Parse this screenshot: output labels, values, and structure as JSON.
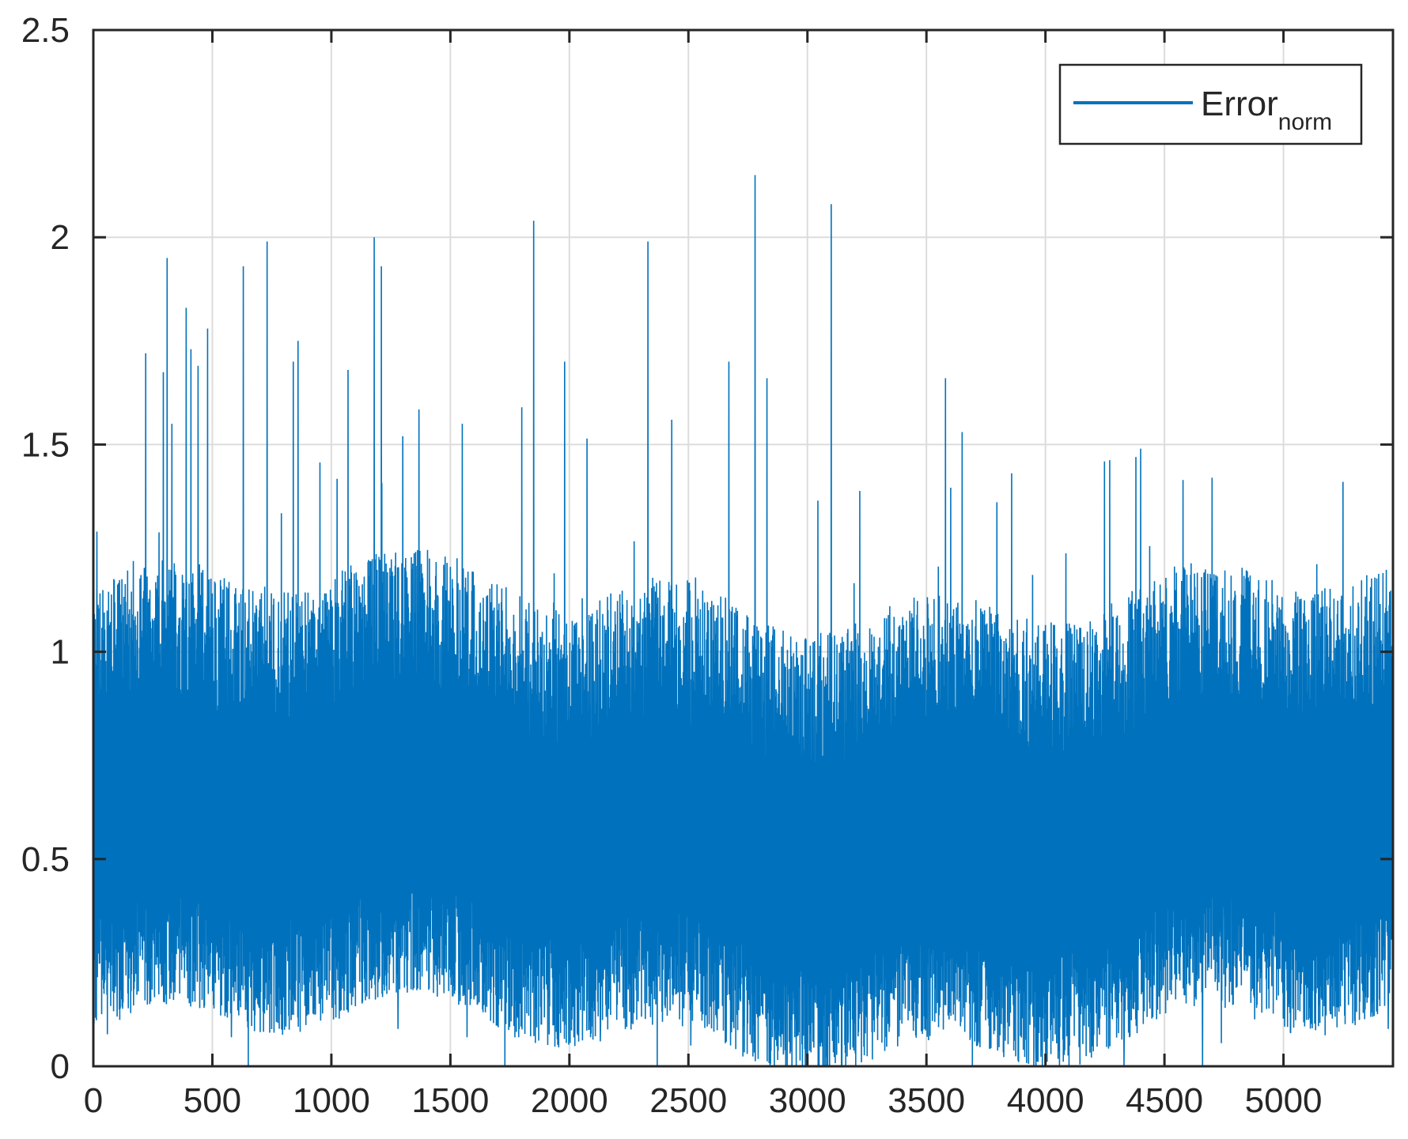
{
  "chart_data": {
    "type": "line",
    "title": "",
    "xlabel": "",
    "ylabel": "",
    "xlim": [
      0,
      5460
    ],
    "ylim": [
      0,
      2.5
    ],
    "x_ticks": [
      0,
      500,
      1000,
      1500,
      2000,
      2500,
      3000,
      3500,
      4000,
      4500,
      5000
    ],
    "x_tick_labels": [
      "0",
      "500",
      "1000",
      "1500",
      "2000",
      "2500",
      "3000",
      "3500",
      "4000",
      "4500",
      "5000"
    ],
    "y_ticks": [
      0,
      0.5,
      1,
      1.5,
      2,
      2.5
    ],
    "y_tick_labels": [
      "0",
      "0.5",
      "1",
      "1.5",
      "2",
      "2.5"
    ],
    "grid": true,
    "legend_position": "top-right",
    "colors": {
      "series": "#0072BD",
      "axis": "#262626",
      "grid": "#dcdcdc",
      "background": "#ffffff"
    },
    "series": [
      {
        "name": "Error",
        "name_subscript": "norm",
        "notes": "dense noisy signal, ~5460 samples; typical band 0.2–1.0, mean ≈0.55",
        "typical_range": [
          0.2,
          1.0
        ],
        "peaks": [
          {
            "x": 0,
            "y": 1.49
          },
          {
            "x": 15,
            "y": 1.29
          },
          {
            "x": 220,
            "y": 1.72
          },
          {
            "x": 310,
            "y": 1.95
          },
          {
            "x": 330,
            "y": 1.55
          },
          {
            "x": 390,
            "y": 1.83
          },
          {
            "x": 410,
            "y": 1.73
          },
          {
            "x": 440,
            "y": 1.69
          },
          {
            "x": 480,
            "y": 1.78
          },
          {
            "x": 630,
            "y": 1.93
          },
          {
            "x": 730,
            "y": 1.99
          },
          {
            "x": 840,
            "y": 1.7
          },
          {
            "x": 860,
            "y": 1.75
          },
          {
            "x": 1070,
            "y": 1.68
          },
          {
            "x": 1180,
            "y": 2.0
          },
          {
            "x": 1210,
            "y": 1.93
          },
          {
            "x": 1300,
            "y": 1.52
          },
          {
            "x": 1550,
            "y": 1.55
          },
          {
            "x": 1800,
            "y": 1.59
          },
          {
            "x": 1850,
            "y": 2.04
          },
          {
            "x": 1980,
            "y": 1.7
          },
          {
            "x": 2330,
            "y": 1.99
          },
          {
            "x": 2430,
            "y": 1.56
          },
          {
            "x": 2670,
            "y": 1.7
          },
          {
            "x": 2780,
            "y": 2.15
          },
          {
            "x": 2830,
            "y": 1.66
          },
          {
            "x": 3100,
            "y": 2.08
          },
          {
            "x": 3580,
            "y": 1.66
          },
          {
            "x": 3650,
            "y": 1.53
          },
          {
            "x": 4380,
            "y": 1.47
          },
          {
            "x": 4400,
            "y": 1.49
          },
          {
            "x": 4700,
            "y": 1.42
          },
          {
            "x": 5250,
            "y": 1.41
          }
        ],
        "troughs": [
          {
            "x": 100,
            "y": 0.12
          },
          {
            "x": 580,
            "y": 0.07
          },
          {
            "x": 1280,
            "y": 0.09
          },
          {
            "x": 1570,
            "y": 0.07
          },
          {
            "x": 2130,
            "y": 0.06
          },
          {
            "x": 2510,
            "y": 0.05
          },
          {
            "x": 2900,
            "y": 0.04
          },
          {
            "x": 3180,
            "y": 0.04
          },
          {
            "x": 3960,
            "y": 0.0
          },
          {
            "x": 4330,
            "y": 0.0
          },
          {
            "x": 4660,
            "y": 0.0
          },
          {
            "x": 5030,
            "y": 0.08
          },
          {
            "x": 5440,
            "y": 0.09
          }
        ]
      }
    ]
  }
}
